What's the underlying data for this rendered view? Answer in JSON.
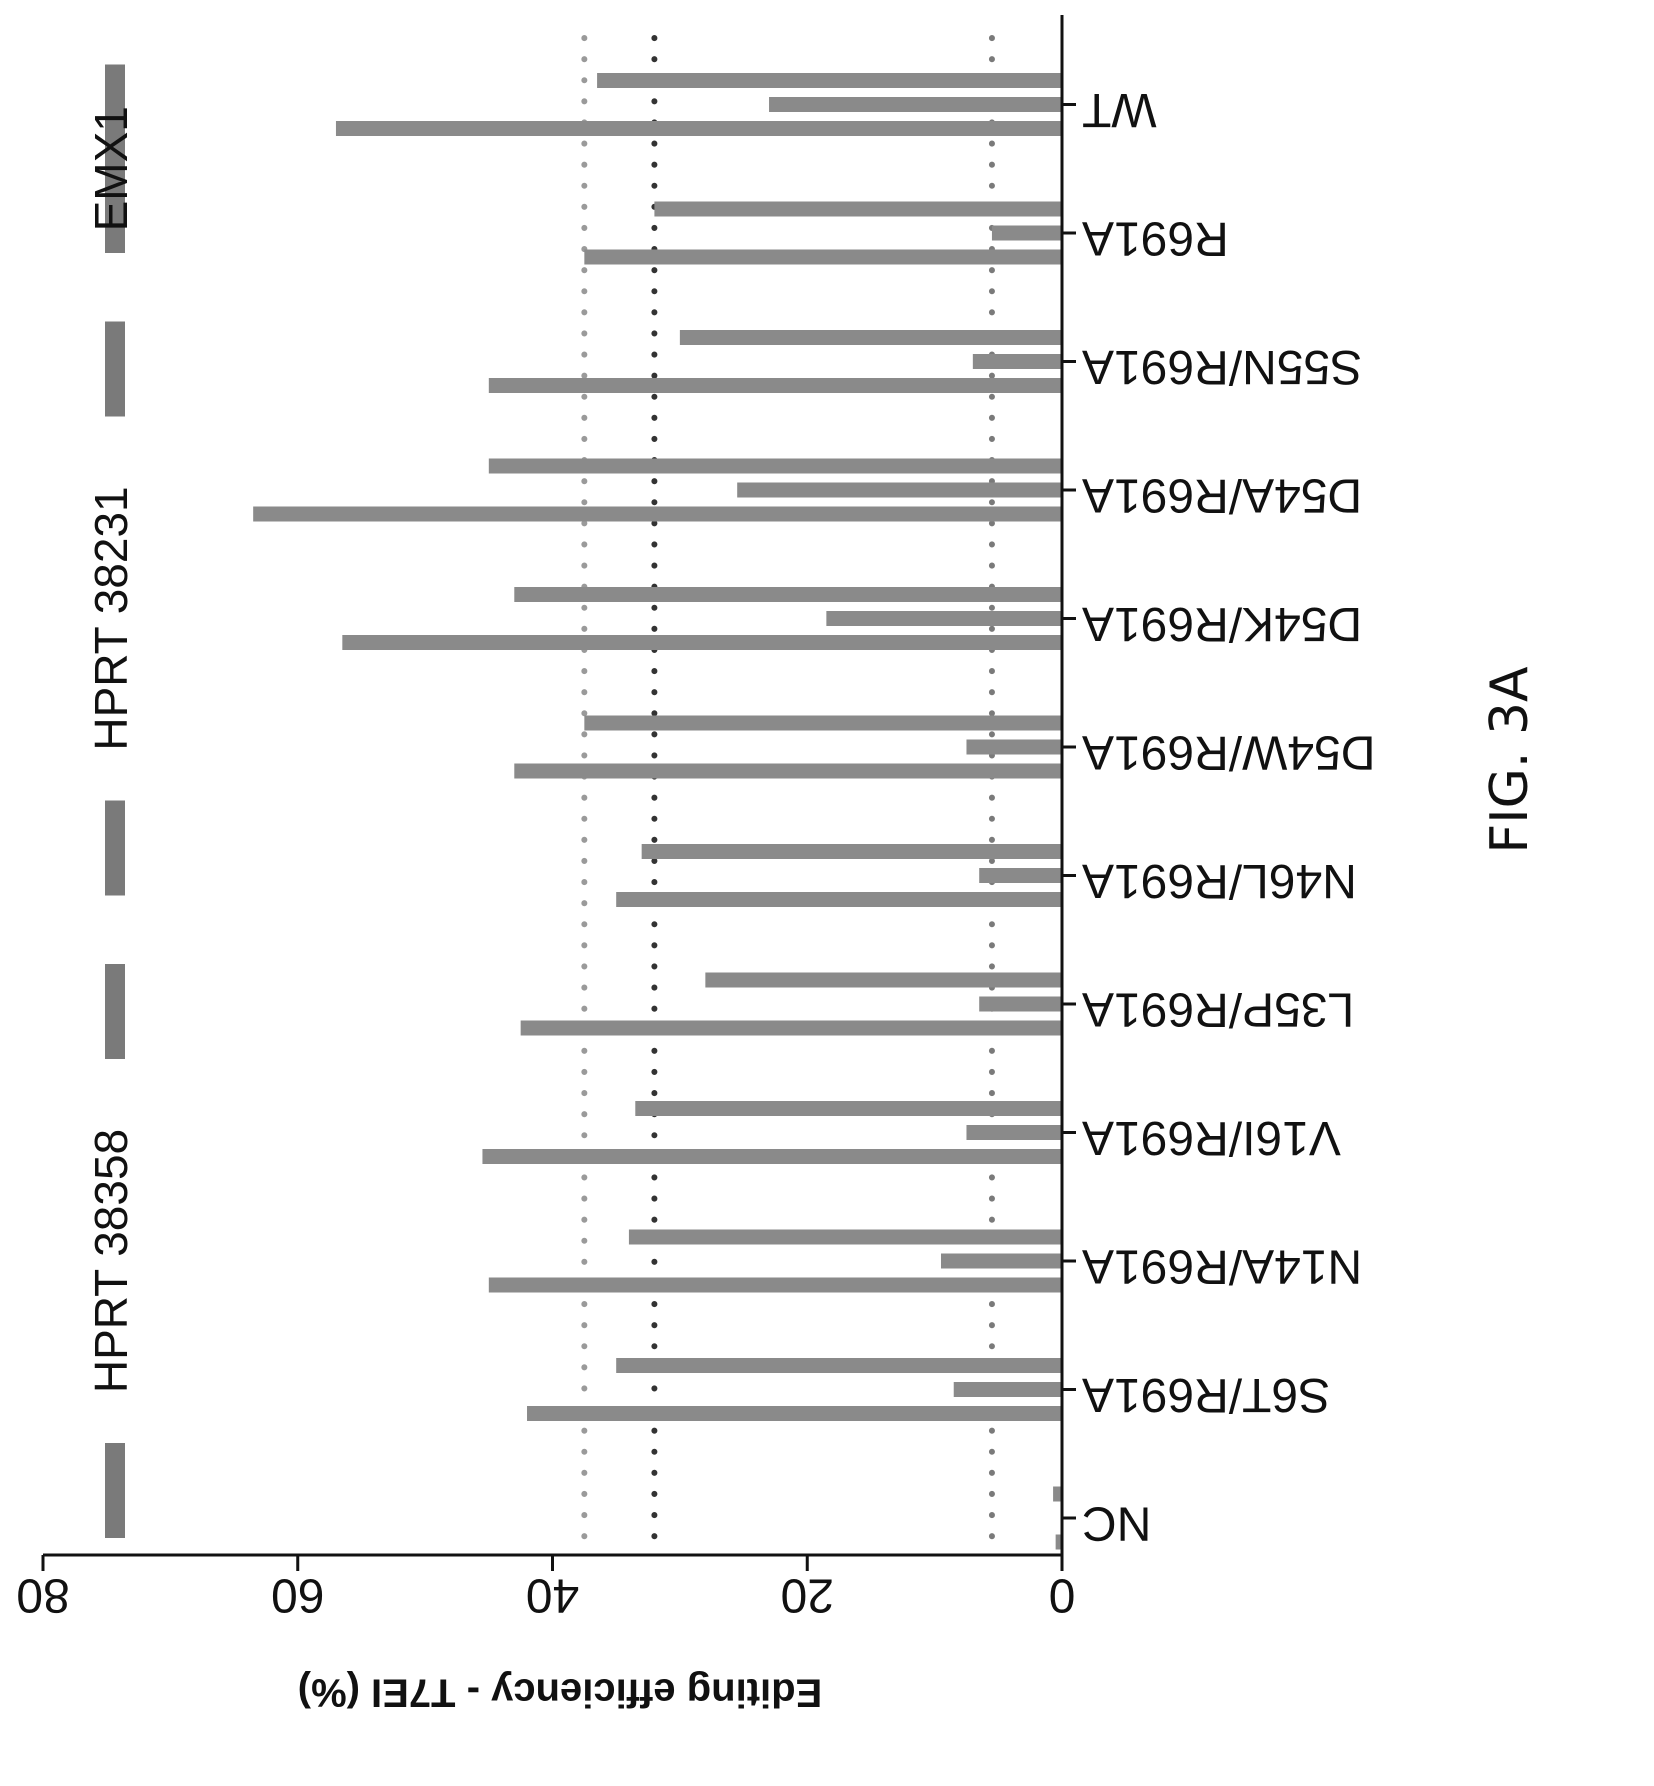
{
  "figure_label": "FIG. 3A",
  "chart_data": {
    "type": "bar",
    "orientation": "rotated 180deg (value axis horizontal, decreasing to the right)",
    "ylabel": "Editing efficiency - T7EI (%)",
    "ylim": [
      0,
      80
    ],
    "yticks": [
      "0",
      "20",
      "40",
      "60",
      "80"
    ],
    "categories": [
      "NC",
      "S6T/R691A",
      "N14A/R691A",
      "V16I/R691A",
      "L35P/R691A",
      "N46L/R691A",
      "D54W/R691A",
      "D54K/R691A",
      "D54A/R691A",
      "S55N/R691A",
      "R691A",
      "WT"
    ],
    "series": [
      {
        "values": [
          0.5,
          42,
          45,
          45.5,
          42.5,
          35,
          43,
          56.5,
          63.5,
          45,
          37.5,
          57
        ]
      },
      {
        "values": [
          0,
          8.5,
          9.5,
          7.5,
          6.5,
          6.5,
          7.5,
          18.5,
          25.5,
          7,
          5.5,
          23
        ]
      },
      {
        "values": [
          0.7,
          35,
          34,
          33.5,
          28,
          33,
          37.5,
          43,
          45,
          30,
          32,
          36.5
        ]
      }
    ],
    "reference_lines": [
      37.5,
      32,
      5.5
    ],
    "groups": [
      {
        "label": "HPRT 38358"
      },
      {
        "label": "HPRT 38231"
      },
      {
        "label": "EMX1"
      }
    ],
    "bar_color": "#8a8a8a",
    "line_colors": [
      "#9a9a9a",
      "#333333",
      "#7a7a7a"
    ]
  }
}
